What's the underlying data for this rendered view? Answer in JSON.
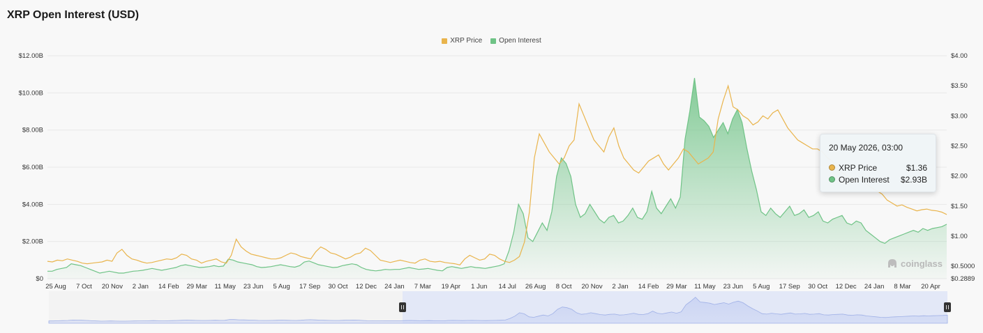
{
  "title": "XRP Open Interest (USD)",
  "legend": [
    {
      "label": "XRP Price",
      "color": "#e9b44c"
    },
    {
      "label": "Open Interest",
      "color": "#6fc386"
    }
  ],
  "tooltip": {
    "date": "20 May 2026, 03:00",
    "rows": [
      {
        "label": "XRP Price",
        "value": "$1.36",
        "color": "#e9b44c"
      },
      {
        "label": "Open Interest",
        "value": "$2.93B",
        "color": "#6fc386"
      }
    ]
  },
  "watermark": "coinglass",
  "colors": {
    "price": "#e9b44c",
    "oi": "#6fc386",
    "grid": "#e9e9e9",
    "navigator": "#c9d3f3"
  },
  "chart_data": {
    "type": "line",
    "title": "XRP Open Interest (USD)",
    "x_tick_labels": [
      "25 Aug",
      "7 Oct",
      "20 Nov",
      "2 Jan",
      "14 Feb",
      "29 Mar",
      "11 May",
      "23 Jun",
      "5 Aug",
      "17 Sep",
      "30 Oct",
      "12 Dec",
      "24 Jan",
      "7 Mar",
      "19 Apr",
      "1 Jun",
      "14 Jul",
      "26 Aug",
      "8 Oct",
      "20 Nov",
      "2 Jan",
      "14 Feb",
      "29 Mar",
      "11 May",
      "23 Jun",
      "5 Aug",
      "17 Sep",
      "30 Oct",
      "12 Dec",
      "24 Jan",
      "8 Mar",
      "20 Apr"
    ],
    "y_left_tick_labels": [
      "$0",
      "$2.00B",
      "$4.00B",
      "$6.00B",
      "$8.00B",
      "$10.00B",
      "$12.00B"
    ],
    "y_left_range": [
      0,
      12
    ],
    "y_left_unit": "B USD",
    "y_right_tick_labels": [
      {
        "label": "$4.00",
        "value": 4.0
      },
      {
        "label": "$3.50",
        "value": 3.5
      },
      {
        "label": "$3.00",
        "value": 3.0
      },
      {
        "label": "$2.50",
        "value": 2.5
      },
      {
        "label": "$2.00",
        "value": 2.0
      },
      {
        "label": "$1.50",
        "value": 1.5
      },
      {
        "label": "$1.00",
        "value": 1.0
      },
      {
        "label": "$0.5000",
        "value": 0.5
      },
      {
        "label": "$0.2889",
        "value": 0.2889
      }
    ],
    "y_right_range": [
      0.2889,
      4.0
    ],
    "grid": true,
    "legend_position": "top-center",
    "series": [
      {
        "name": "XRP Price",
        "axis": "right",
        "type": "line",
        "values": [
          0.58,
          0.57,
          0.6,
          0.59,
          0.62,
          0.6,
          0.58,
          0.55,
          0.54,
          0.55,
          0.56,
          0.57,
          0.6,
          0.58,
          0.72,
          0.78,
          0.68,
          0.62,
          0.6,
          0.57,
          0.55,
          0.56,
          0.58,
          0.6,
          0.62,
          0.61,
          0.64,
          0.7,
          0.68,
          0.62,
          0.6,
          0.55,
          0.58,
          0.6,
          0.62,
          0.57,
          0.55,
          0.68,
          0.95,
          0.82,
          0.75,
          0.7,
          0.68,
          0.66,
          0.64,
          0.62,
          0.62,
          0.64,
          0.68,
          0.72,
          0.7,
          0.66,
          0.64,
          0.62,
          0.74,
          0.82,
          0.78,
          0.72,
          0.7,
          0.66,
          0.62,
          0.65,
          0.7,
          0.72,
          0.8,
          0.76,
          0.68,
          0.6,
          0.58,
          0.56,
          0.58,
          0.6,
          0.58,
          0.56,
          0.55,
          0.6,
          0.62,
          0.58,
          0.57,
          0.58,
          0.56,
          0.55,
          0.54,
          0.52,
          0.62,
          0.68,
          0.64,
          0.6,
          0.62,
          0.7,
          0.68,
          0.62,
          0.58,
          0.56,
          0.6,
          0.66,
          0.9,
          1.4,
          2.3,
          2.7,
          2.55,
          2.4,
          2.3,
          2.2,
          2.3,
          2.5,
          2.6,
          3.2,
          3.0,
          2.8,
          2.6,
          2.5,
          2.4,
          2.65,
          2.8,
          2.5,
          2.3,
          2.2,
          2.1,
          2.05,
          2.15,
          2.25,
          2.3,
          2.35,
          2.2,
          2.1,
          2.2,
          2.3,
          2.45,
          2.4,
          2.3,
          2.2,
          2.25,
          2.3,
          2.4,
          2.95,
          3.25,
          3.5,
          3.15,
          3.1,
          3.0,
          2.95,
          2.85,
          2.9,
          3.0,
          2.95,
          3.05,
          3.1,
          2.95,
          2.8,
          2.7,
          2.6,
          2.55,
          2.5,
          2.45,
          2.45,
          2.4,
          2.3,
          2.25,
          2.1,
          2.05,
          2.0,
          1.95,
          1.9,
          1.95,
          1.85,
          1.8,
          1.75,
          1.7,
          1.6,
          1.55,
          1.5,
          1.52,
          1.48,
          1.45,
          1.42,
          1.44,
          1.45,
          1.43,
          1.42,
          1.4,
          1.36
        ]
      },
      {
        "name": "Open Interest",
        "axis": "left",
        "type": "area",
        "unit": "B USD",
        "values": [
          0.4,
          0.4,
          0.5,
          0.55,
          0.6,
          0.8,
          0.75,
          0.7,
          0.6,
          0.5,
          0.4,
          0.3,
          0.35,
          0.4,
          0.35,
          0.3,
          0.3,
          0.35,
          0.4,
          0.42,
          0.45,
          0.5,
          0.55,
          0.5,
          0.45,
          0.5,
          0.55,
          0.6,
          0.7,
          0.75,
          0.7,
          0.65,
          0.6,
          0.62,
          0.65,
          0.7,
          0.65,
          0.68,
          1.05,
          1.0,
          0.9,
          0.85,
          0.8,
          0.75,
          0.65,
          0.6,
          0.62,
          0.65,
          0.7,
          0.75,
          0.7,
          0.65,
          0.62,
          0.7,
          0.9,
          0.95,
          0.85,
          0.75,
          0.7,
          0.65,
          0.6,
          0.62,
          0.7,
          0.75,
          0.8,
          0.75,
          0.6,
          0.5,
          0.45,
          0.42,
          0.45,
          0.5,
          0.48,
          0.5,
          0.5,
          0.55,
          0.6,
          0.55,
          0.5,
          0.52,
          0.55,
          0.5,
          0.45,
          0.42,
          0.6,
          0.65,
          0.6,
          0.55,
          0.6,
          0.65,
          0.6,
          0.58,
          0.55,
          0.6,
          0.65,
          0.7,
          0.8,
          1.5,
          2.5,
          4.0,
          3.5,
          2.2,
          2.0,
          2.5,
          3.0,
          2.6,
          3.6,
          5.5,
          6.5,
          6.2,
          5.5,
          4.0,
          3.3,
          3.5,
          4.0,
          3.6,
          3.2,
          3.0,
          3.3,
          3.4,
          3.0,
          3.1,
          3.4,
          3.8,
          3.3,
          3.2,
          3.6,
          4.7,
          3.8,
          3.5,
          3.9,
          4.3,
          3.8,
          4.4,
          7.5,
          9.0,
          10.8,
          8.7,
          8.5,
          8.2,
          7.6,
          8.0,
          8.4,
          7.8,
          8.6,
          9.1,
          8.4,
          7.0,
          5.8,
          4.8,
          3.6,
          3.4,
          3.8,
          3.5,
          3.3,
          3.6,
          3.9,
          3.4,
          3.5,
          3.7,
          3.3,
          3.4,
          3.6,
          3.1,
          3.0,
          3.2,
          3.3,
          3.4,
          3.0,
          2.9,
          3.1,
          3.0,
          2.6,
          2.4,
          2.2,
          2.0,
          1.9,
          2.1,
          2.2,
          2.3,
          2.4,
          2.5,
          2.6,
          2.5,
          2.7,
          2.6,
          2.7,
          2.75,
          2.8,
          2.93
        ]
      }
    ]
  }
}
